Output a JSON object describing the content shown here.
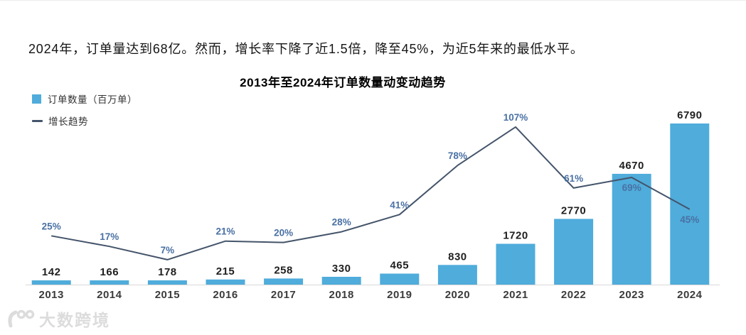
{
  "intro": {
    "text": "2024年，订单量达到68亿。然而，增长率下降了近1.5倍，降至45%，为近5年来的最低水平。"
  },
  "chart": {
    "title": "2013年至2024年订单数量动变动趋势",
    "legend": [
      {
        "icon": "bar-swatch",
        "label": "订单数量（百万单）"
      },
      {
        "icon": "line-swatch",
        "label": "增长趋势"
      }
    ]
  },
  "chart_data": {
    "type": "bar+line",
    "title": "2013年至2024年订单数量动变动趋势",
    "categories": [
      "2013",
      "2014",
      "2015",
      "2016",
      "2017",
      "2018",
      "2019",
      "2020",
      "2021",
      "2022",
      "2023",
      "2024"
    ],
    "series": [
      {
        "name": "订单数量（百万单）",
        "type": "bar",
        "values": [
          142,
          166,
          178,
          215,
          258,
          330,
          465,
          830,
          1720,
          2770,
          4670,
          6790
        ]
      },
      {
        "name": "增长趋势",
        "type": "line",
        "unit": "%",
        "values": [
          25,
          17,
          7,
          21,
          20,
          28,
          41,
          78,
          107,
          61,
          69,
          45
        ],
        "labels": [
          "25%",
          "17%",
          "7%",
          "21%",
          "20%",
          "28%",
          "41%",
          "78%",
          "107%",
          "61%",
          "69%",
          "45%"
        ]
      }
    ],
    "xlabel": "",
    "ylabel": "",
    "grid": false,
    "legend_position": "top-left",
    "pct_labels_below": [
      "2023",
      "2024"
    ],
    "bar_value_labels_shown": true
  },
  "colors": {
    "bar": "#4FACDB",
    "line": "#44546A",
    "pct_label": "#4A71A4",
    "bar_label": "#1f1f1f",
    "year_label": "#3b3b3b",
    "axis_line": "#d9d9d9"
  },
  "watermark": {
    "logo_icon": "dashu-kuajing-logo",
    "text": "大数跨境"
  }
}
